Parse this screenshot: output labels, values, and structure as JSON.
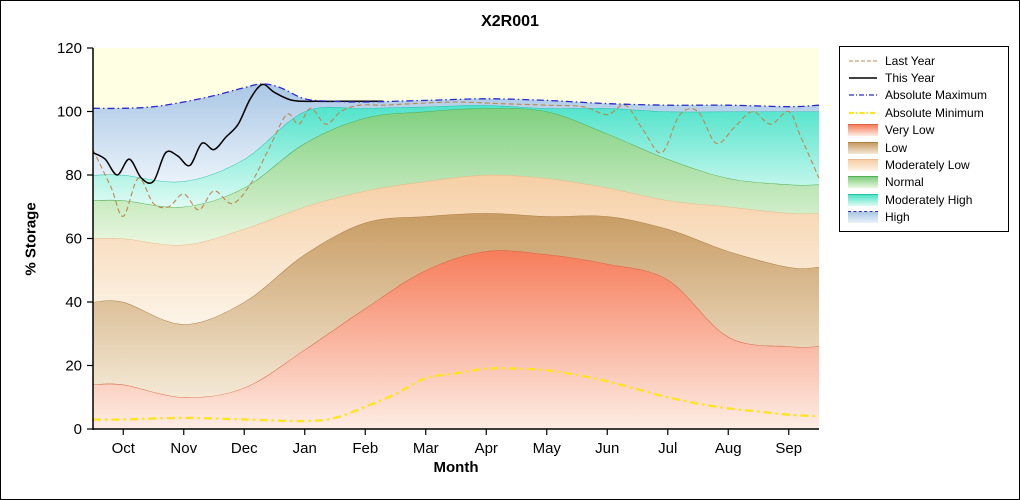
{
  "title": "X2R001",
  "axes": {
    "xlabel": "Month",
    "ylabel": "% Storage",
    "yticks": [
      0,
      20,
      40,
      60,
      80,
      100,
      120
    ]
  },
  "chart_data": {
    "type": "area",
    "title": "X2R001",
    "xlabel": "Month",
    "ylabel": "% Storage",
    "ylim": [
      0,
      120
    ],
    "legend_position": "right",
    "plot_bg": "#FFFFE3",
    "categories": [
      "Oct",
      "Nov",
      "Dec",
      "Jan",
      "Feb",
      "Mar",
      "Apr",
      "May",
      "Jun",
      "Jul",
      "Aug",
      "Sep"
    ],
    "bands": [
      {
        "name": "Very Low",
        "values": [
          14,
          10,
          13,
          25,
          38,
          50,
          56,
          55,
          52,
          47,
          29,
          26
        ],
        "fill_top": "#F67D5B",
        "fill_bottom": "#FDEDE4",
        "edge": "#DB6443"
      },
      {
        "name": "Low",
        "values": [
          40,
          33,
          40,
          55,
          65,
          67,
          68,
          67,
          67,
          63,
          56,
          51
        ],
        "fill_top": "#C89C63",
        "fill_bottom": "#F4E9D6",
        "edge": "#AC8148"
      },
      {
        "name": "Moderately Low",
        "values": [
          60,
          58,
          63,
          70,
          75,
          78,
          80,
          79,
          76,
          72,
          70,
          68
        ],
        "fill_top": "#F6CFA5",
        "fill_bottom": "#FCF4E8",
        "edge": "#E7BA8B"
      },
      {
        "name": "Normal",
        "values": [
          72,
          70,
          76,
          90,
          98,
          100,
          101,
          100,
          93,
          85,
          79,
          77
        ],
        "fill_top": "#7FD07F",
        "fill_bottom": "#EAF7E0",
        "edge": "#53AD53"
      },
      {
        "name": "Moderately High",
        "values": [
          80,
          78,
          85,
          100,
          101,
          101.5,
          102,
          101,
          101,
          100,
          100,
          100
        ],
        "fill_top": "#4FE3CB",
        "fill_bottom": "#E0FBF3",
        "edge": "#26C2AB"
      },
      {
        "name": "High",
        "values": [
          101,
          103,
          107.5,
          104,
          103,
          103.5,
          104,
          103.5,
          102.5,
          102,
          102,
          101.5
        ],
        "top_x": [
          -0.5,
          0,
          0.5,
          1,
          1.5,
          2,
          2.3,
          2.6,
          3,
          3.5,
          4,
          5,
          6,
          7,
          8,
          9,
          10,
          11,
          11.5
        ],
        "top_y": [
          101,
          101,
          101.5,
          103,
          105,
          107.5,
          108.7,
          107.5,
          104,
          103.2,
          103,
          103.5,
          104,
          103.5,
          102.5,
          102,
          102,
          101.5,
          102
        ],
        "fill_top": "#A9C7E5",
        "fill_bottom": "#EAF2FA",
        "edge": null
      }
    ],
    "lines": [
      {
        "name": "Last Year",
        "color": "#BE874E",
        "width": 1.1,
        "dash": "5 3",
        "x": [
          -0.5,
          -0.2,
          0,
          0.25,
          0.5,
          0.75,
          1,
          1.25,
          1.5,
          1.8,
          2.1,
          2.4,
          2.7,
          2.9,
          3.1,
          3.35,
          3.6,
          3.9,
          4.3,
          4.8,
          5.5,
          6.2,
          7,
          7.6,
          8,
          8.3,
          8.6,
          8.9,
          9.2,
          9.5,
          9.8,
          10.1,
          10.4,
          10.7,
          11,
          11.2,
          11.5
        ],
        "y": [
          88,
          76,
          67,
          79,
          71,
          70,
          74,
          69,
          75,
          71,
          77,
          88,
          99,
          96,
          101,
          96,
          100,
          102,
          102,
          102.5,
          103,
          102.5,
          102,
          101.5,
          99,
          102,
          94,
          87,
          99,
          100,
          90,
          95,
          100,
          96,
          100,
          92,
          79
        ]
      },
      {
        "name": "Absolute Minimum",
        "color": "#FFE41C",
        "width": 2.3,
        "dash": "8 4 2.5 4",
        "x": [
          -0.5,
          0,
          1,
          2,
          3,
          3.5,
          4,
          4.5,
          5,
          5.5,
          6,
          6.5,
          7,
          7.5,
          8,
          8.5,
          9,
          9.5,
          10,
          10.5,
          11,
          11.5
        ],
        "y": [
          3,
          3,
          3.5,
          3,
          2.5,
          3.5,
          7,
          11,
          16,
          17.5,
          19,
          19,
          18.5,
          17,
          15,
          12.5,
          10,
          8,
          6.5,
          5.5,
          4.5,
          4
        ]
      },
      {
        "name": "This Year",
        "color": "#000000",
        "width": 1.5,
        "dash": "",
        "x": [
          -0.5,
          -0.3,
          -0.1,
          0.1,
          0.3,
          0.5,
          0.7,
          0.9,
          1.1,
          1.3,
          1.5,
          1.7,
          1.9,
          2.1,
          2.3,
          2.5,
          2.8,
          3.2,
          3.6,
          4,
          4.3
        ],
        "y": [
          87,
          85,
          80,
          85,
          79,
          78,
          87,
          86,
          83,
          90,
          88,
          92,
          96,
          104,
          108.5,
          106,
          103.5,
          103.2,
          103.2,
          103.2,
          103.2
        ]
      },
      {
        "name": "Absolute Maximum",
        "color": "#2B2BD0",
        "width": 1.3,
        "dash": "7 3 1.5 3",
        "x": [
          -0.5,
          0,
          0.5,
          1,
          1.5,
          2,
          2.3,
          2.6,
          3,
          3.5,
          4,
          5,
          6,
          7,
          8,
          9,
          10,
          11,
          11.5
        ],
        "y": [
          101,
          101,
          101.5,
          103,
          105,
          107.5,
          108.7,
          107.5,
          104,
          103.2,
          103,
          103.5,
          104,
          103.5,
          102.5,
          102,
          102,
          101.5,
          102
        ]
      }
    ]
  },
  "legend": {
    "entries": [
      {
        "label": "Last Year",
        "type": "line",
        "color": "#BE874E",
        "dash": "4 2",
        "width": 1.1
      },
      {
        "label": "This Year",
        "type": "line",
        "color": "#000000",
        "dash": "",
        "width": 1.4
      },
      {
        "label": "Absolute Maximum",
        "type": "line",
        "color": "#2B2BD0",
        "dash": "5 2 1 2",
        "width": 1.3
      },
      {
        "label": "Absolute Minimum",
        "type": "line",
        "color": "#FFE41C",
        "dash": "5 2 1.5 2",
        "width": 2.2
      },
      {
        "label": "Very Low",
        "type": "patch",
        "top": "#F67D5B",
        "bottom": "#FDEDE4",
        "edge": "#DB6443"
      },
      {
        "label": "Low",
        "type": "patch",
        "top": "#C89C63",
        "bottom": "#F4E9D6",
        "edge": "#AC8148"
      },
      {
        "label": "Moderately Low",
        "type": "patch",
        "top": "#F6CFA5",
        "bottom": "#FCF4E8",
        "edge": "#E7BA8B"
      },
      {
        "label": "Normal",
        "type": "patch",
        "top": "#7FD07F",
        "bottom": "#EAF7E0",
        "edge": "#53AD53"
      },
      {
        "label": "Moderately High",
        "type": "patch",
        "top": "#4FE3CB",
        "bottom": "#E0FBF3",
        "edge": "#26C2AB"
      },
      {
        "label": "High",
        "type": "patch",
        "top": "#A9C7E5",
        "bottom": "#EAF2FA",
        "edge": "#2B2BD0",
        "edge_dash": "2 2"
      }
    ]
  }
}
